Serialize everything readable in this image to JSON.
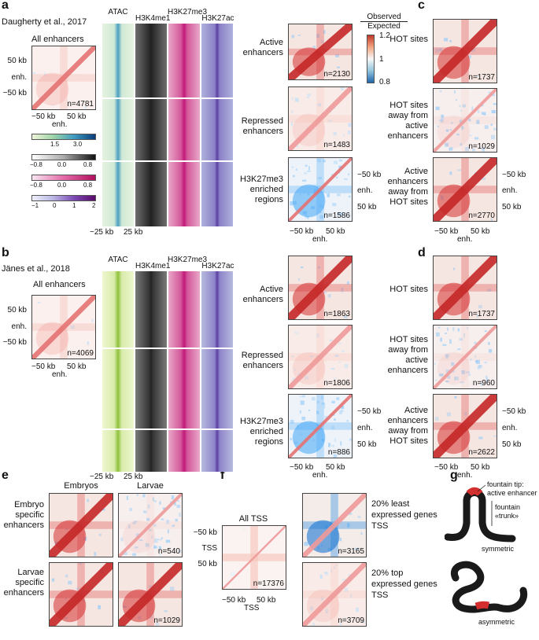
{
  "panels": {
    "a": "a",
    "b": "b",
    "c": "c",
    "d": "d",
    "e": "e",
    "f": "f",
    "g": "g"
  },
  "panel_a": {
    "source": "Daugherty et al., 2017",
    "all_title": "All enhancers",
    "all_n": "n=4781",
    "yticks": [
      "50 kb",
      "enh.",
      "−50 kb"
    ],
    "xticks": [
      "−50 kb",
      "50 kb"
    ],
    "xlabel": "enh.",
    "track_headers": [
      "ATAC",
      "H3K4me1",
      "H3K27me3",
      "H3K27ac"
    ],
    "track_x": [
      "−25 kb",
      "25 kb"
    ],
    "colorbars": [
      {
        "ticks": [
          "1.5",
          "3.0"
        ]
      },
      {
        "ticks": [
          "−0.8",
          "0.0",
          "0.8"
        ]
      },
      {
        "ticks": [
          "−0.8",
          "0.0",
          "0.8"
        ]
      },
      {
        "ticks": [
          "−1",
          "0",
          "1",
          "2"
        ]
      }
    ],
    "groups": [
      {
        "label": "Active enhancers",
        "n": "n=2130"
      },
      {
        "label": "Repressed enhancers",
        "n": "n=1483"
      },
      {
        "label": "H3K27me3 enriched regions",
        "n": "n=1586"
      }
    ]
  },
  "legend_oe": {
    "title_top": "Observed",
    "title_bottom": "Expected",
    "ticks": [
      "1.2",
      "1",
      "0.8"
    ]
  },
  "panel_c": {
    "groups": [
      {
        "label": "HOT sites",
        "n": "n=1737"
      },
      {
        "label": "HOT sites away from active enhancers",
        "n": "n=1029"
      },
      {
        "label": "Active enhancers away from HOT sites",
        "n": "n=2770"
      }
    ]
  },
  "axis_right": {
    "ticks": [
      "−50 kb",
      "enh.",
      "50 kb"
    ]
  },
  "axis_bottom": {
    "ticks": [
      "−50 kb",
      "50 kb"
    ],
    "label": "enh."
  },
  "panel_b": {
    "source": "Jänes et al., 2018",
    "all_title": "All enhancers",
    "all_n": "n=4069",
    "groups": [
      {
        "label": "Active enhancers",
        "n": "n=1863"
      },
      {
        "label": "Repressed enhancers",
        "n": "n=1806"
      },
      {
        "label": "H3K27me3 enriched regions",
        "n": "n=886"
      }
    ]
  },
  "panel_d": {
    "groups": [
      {
        "label": "HOT sites",
        "n": "n=1737"
      },
      {
        "label": "HOT sites away from active enhancers",
        "n": "n=960"
      },
      {
        "label": "Active enhancers away from HOT sites",
        "n": "n=2622"
      }
    ]
  },
  "panel_e": {
    "col_headers": [
      "Embryos",
      "Larvae"
    ],
    "rows": [
      {
        "label": "Embryo specific enhancers",
        "n": "n=540"
      },
      {
        "label": "Larvae specific enhancers",
        "n": "n=1029"
      }
    ]
  },
  "panel_f": {
    "all_title": "All TSS",
    "all_n": "n=17376",
    "yticks": [
      "−50 kb",
      "TSS",
      "50 kb"
    ],
    "xticks": [
      "−50 kb",
      "50 kb"
    ],
    "xlabel": "TSS",
    "rows": [
      {
        "label": "20% least expressed genes TSS",
        "n": "n=3165"
      },
      {
        "label": "20% top expressed genes TSS",
        "n": "n=3709"
      }
    ]
  },
  "panel_g": {
    "tip_label": "fountain tip: active enhancer",
    "trunk_label": "fountain «trunk»",
    "symmetric": "symmetric",
    "asymmetric": "asymmetric"
  },
  "colors": {
    "red": "#d73027",
    "blue": "#2c7bb6",
    "white": "#f7f7f7",
    "atac_a": "#4a9ec0",
    "atac_b": "#8fc23a",
    "k4me1": "#222222",
    "k27me3": "#c2187a",
    "k27ac": "#5b3fa0"
  },
  "chart_data": {
    "type": "heatmap",
    "description_source": "Hi-C observed/expected pileups; intensity legend",
    "legend_range": [
      0.8,
      1.2
    ],
    "legend_mid": 1
  }
}
